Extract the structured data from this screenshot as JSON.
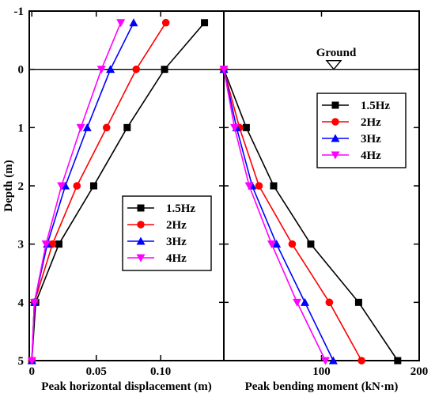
{
  "chart_data": [
    {
      "type": "line",
      "xlabel": "Peak horizontal displacement (m)",
      "ylabel": "Depth (m)",
      "xlim": [
        -0.002,
        0.149
      ],
      "ylim": [
        -1,
        5
      ],
      "y_inverted": true,
      "xticks": [
        0,
        0.05,
        0.1
      ],
      "xtick_labels": [
        "0",
        "0.05",
        "0.10"
      ],
      "yticks": [
        -1,
        0,
        1,
        2,
        3,
        4,
        5
      ],
      "ytick_labels": [
        "-1",
        "0",
        "1",
        "2",
        "3",
        "4",
        "5"
      ],
      "legend_position": "bottom-right",
      "series": [
        {
          "name": "1.5Hz",
          "color": "#000000",
          "marker": "square",
          "x": [
            0.134,
            0.103,
            0.074,
            0.048,
            0.021,
            0.003,
            0.0
          ],
          "y": [
            -0.8,
            0,
            1,
            2,
            3,
            4,
            5
          ]
        },
        {
          "name": "2Hz",
          "color": "#ff0000",
          "marker": "circle",
          "x": [
            0.104,
            0.081,
            0.058,
            0.035,
            0.016,
            0.002,
            0.0
          ],
          "y": [
            -0.8,
            0,
            1,
            2,
            3,
            4,
            5
          ]
        },
        {
          "name": "3Hz",
          "color": "#0000ff",
          "marker": "triangle-up",
          "x": [
            0.079,
            0.061,
            0.043,
            0.026,
            0.012,
            0.002,
            0.0
          ],
          "y": [
            -0.8,
            0,
            1,
            2,
            3,
            4,
            5
          ]
        },
        {
          "name": "4Hz",
          "color": "#ff00ff",
          "marker": "triangle-down",
          "x": [
            0.069,
            0.054,
            0.038,
            0.023,
            0.011,
            0.002,
            0.0
          ],
          "y": [
            -0.8,
            0,
            1,
            2,
            3,
            4,
            5
          ]
        }
      ]
    },
    {
      "type": "line",
      "xlabel": "Peak bending moment (kN·m)",
      "ylabel": "",
      "xlim": [
        0,
        200
      ],
      "ylim": [
        -1,
        5
      ],
      "y_inverted": true,
      "xticks": [
        100,
        200
      ],
      "xtick_labels": [
        "100",
        "200"
      ],
      "annotation": "Ground",
      "legend_position": "top-right",
      "series": [
        {
          "name": "1.5Hz",
          "color": "#000000",
          "marker": "square",
          "x": [
            0,
            23,
            51,
            89,
            138,
            178
          ],
          "y": [
            0,
            1,
            2,
            3,
            4,
            5
          ]
        },
        {
          "name": "2Hz",
          "color": "#ff0000",
          "marker": "circle",
          "x": [
            0,
            16,
            36,
            70,
            108,
            141
          ],
          "y": [
            0,
            1,
            2,
            3,
            4,
            5
          ]
        },
        {
          "name": "3Hz",
          "color": "#0000ff",
          "marker": "triangle-up",
          "x": [
            0,
            13,
            29,
            54,
            83,
            112
          ],
          "y": [
            0,
            1,
            2,
            3,
            4,
            5
          ]
        },
        {
          "name": "4Hz",
          "color": "#ff00ff",
          "marker": "triangle-down",
          "x": [
            0,
            11,
            26,
            49,
            75,
            104
          ],
          "y": [
            0,
            1,
            2,
            3,
            4,
            5
          ]
        }
      ]
    }
  ]
}
